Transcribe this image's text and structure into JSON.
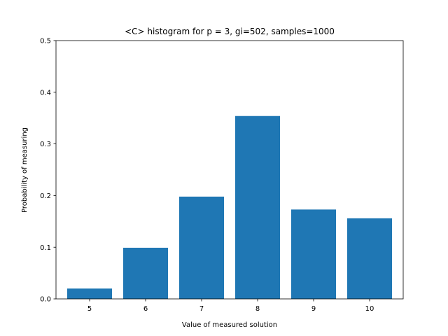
{
  "chart_data": {
    "type": "bar",
    "title": "<C> histogram for p = 3, gi=502, samples=1000",
    "xlabel": "Value of measured solution",
    "ylabel": "Probability of measuring",
    "categories": [
      "5",
      "6",
      "7",
      "8",
      "9",
      "10"
    ],
    "x": [
      5,
      6,
      7,
      8,
      9,
      10
    ],
    "values": [
      0.02,
      0.099,
      0.198,
      0.354,
      0.173,
      0.156
    ],
    "xlim": [
      4.4,
      10.6
    ],
    "ylim": [
      0,
      0.5
    ],
    "yticks": [
      "0.0",
      "0.1",
      "0.2",
      "0.3",
      "0.4",
      "0.5"
    ],
    "bar_width": 0.8,
    "grid": false,
    "bar_color": "#1f77b4"
  }
}
